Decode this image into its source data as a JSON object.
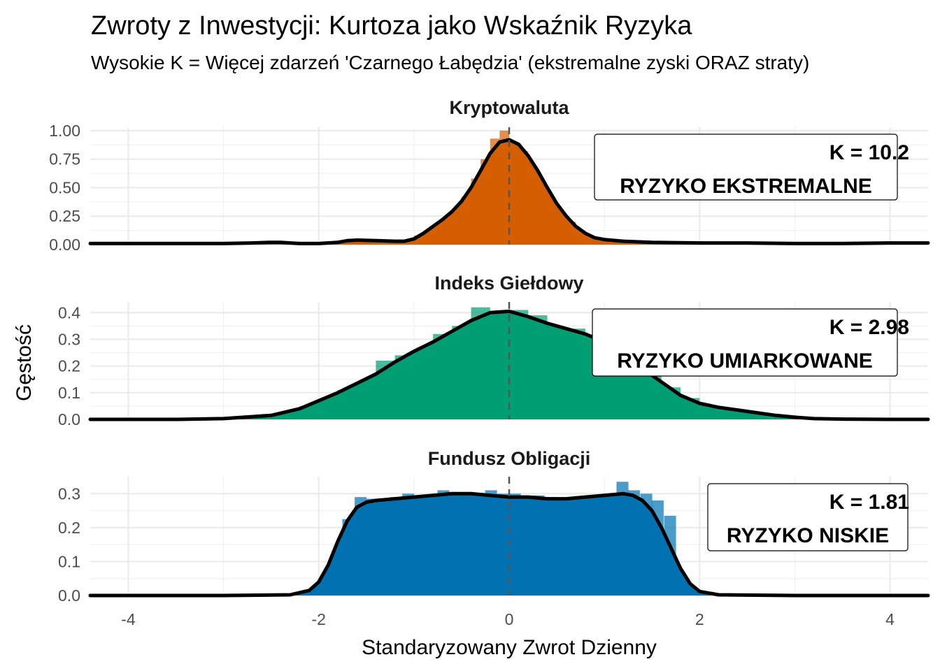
{
  "chart_data": {
    "type": "area",
    "title": "Zwroty z Inwestycji: Kurtoza jako Wskaźnik Ryzyka",
    "subtitle": "Wysokie K = Więcej zdarzeń 'Czarnego Łabędzia' (ekstremalne zyski ORAZ straty)",
    "xlabel": "Standaryzowany Zwrot Dzienny",
    "ylabel": "Gęstość",
    "xlim": [
      -4.4,
      4.4
    ],
    "x_ticks": [
      -4,
      -2,
      0,
      2,
      4
    ],
    "x_tick_labels": [
      "-4",
      "-2",
      "0",
      "2",
      "4"
    ],
    "reference_line_x": 0,
    "grid": true,
    "panels": [
      {
        "name": "Kryptowaluta",
        "color": "#D55E00",
        "ylim": [
          0,
          1.03
        ],
        "y_ticks": [
          0,
          0.25,
          0.5,
          0.75,
          1.0
        ],
        "y_tick_labels": [
          "0.00",
          "0.25",
          "0.50",
          "0.75",
          "1.00"
        ],
        "annotation_k": "K = 10.2",
        "annotation_risk": "RYZYKO EKSTREMALNE",
        "density": {
          "x": [
            -4.4,
            -3.5,
            -3.0,
            -2.7,
            -2.5,
            -2.4,
            -2.3,
            -2.2,
            -2.0,
            -1.8,
            -1.7,
            -1.6,
            -1.4,
            -1.2,
            -1.1,
            -1.0,
            -0.9,
            -0.8,
            -0.7,
            -0.6,
            -0.5,
            -0.4,
            -0.3,
            -0.2,
            -0.1,
            0.0,
            0.1,
            0.2,
            0.3,
            0.4,
            0.5,
            0.6,
            0.7,
            0.8,
            0.9,
            1.0,
            1.2,
            1.5,
            2.0,
            2.5,
            3.0,
            3.5,
            4.0,
            4.4
          ],
          "y": [
            0.01,
            0.01,
            0.01,
            0.015,
            0.02,
            0.02,
            0.015,
            0.01,
            0.01,
            0.02,
            0.035,
            0.04,
            0.035,
            0.03,
            0.03,
            0.05,
            0.1,
            0.16,
            0.22,
            0.29,
            0.38,
            0.5,
            0.65,
            0.8,
            0.9,
            0.92,
            0.88,
            0.78,
            0.65,
            0.5,
            0.36,
            0.25,
            0.16,
            0.1,
            0.06,
            0.045,
            0.03,
            0.02,
            0.015,
            0.015,
            0.01,
            0.01,
            0.015,
            0.015
          ]
        },
        "histogram": {
          "bin_width": 0.1,
          "centers": [
            -2.75,
            -1.85,
            -1.65,
            -1.15,
            -0.95,
            -0.75,
            -0.55,
            -0.45,
            -0.35,
            -0.25,
            -0.15,
            -0.05,
            0.05,
            0.15,
            0.25,
            0.35,
            0.45,
            0.55,
            0.65,
            0.75,
            0.85,
            0.95,
            1.25,
            2.55
          ],
          "heights": [
            0.02,
            0.02,
            0.03,
            0.04,
            0.08,
            0.15,
            0.28,
            0.42,
            0.58,
            0.75,
            0.93,
            1.0,
            0.9,
            0.82,
            0.65,
            0.5,
            0.38,
            0.28,
            0.2,
            0.12,
            0.08,
            0.05,
            0.03,
            0.02
          ]
        }
      },
      {
        "name": "Indeks Giełdowy",
        "color": "#009E73",
        "ylim": [
          0,
          0.44
        ],
        "y_ticks": [
          0,
          0.1,
          0.2,
          0.3,
          0.4
        ],
        "y_tick_labels": [
          "0.0",
          "0.1",
          "0.2",
          "0.3",
          "0.4"
        ],
        "annotation_k": "K = 2.98",
        "annotation_risk": "RYZYKO UMIARKOWANE",
        "density": {
          "x": [
            -4.4,
            -3.5,
            -3.0,
            -2.5,
            -2.2,
            -2.0,
            -1.8,
            -1.6,
            -1.4,
            -1.2,
            -1.0,
            -0.8,
            -0.6,
            -0.4,
            -0.2,
            0.0,
            0.2,
            0.4,
            0.6,
            0.8,
            1.0,
            1.2,
            1.4,
            1.6,
            1.8,
            2.0,
            2.2,
            2.4,
            2.6,
            2.8,
            3.0,
            3.2,
            3.5,
            4.0,
            4.4
          ],
          "y": [
            0.0,
            0.0,
            0.003,
            0.015,
            0.04,
            0.07,
            0.1,
            0.135,
            0.17,
            0.215,
            0.255,
            0.29,
            0.33,
            0.37,
            0.4,
            0.405,
            0.385,
            0.36,
            0.34,
            0.32,
            0.29,
            0.24,
            0.19,
            0.14,
            0.09,
            0.06,
            0.045,
            0.035,
            0.025,
            0.015,
            0.008,
            0.003,
            0.001,
            0.0,
            0.0
          ]
        },
        "histogram": {
          "bin_width": 0.2,
          "centers": [
            -2.5,
            -2.3,
            -2.1,
            -1.9,
            -1.7,
            -1.5,
            -1.3,
            -1.1,
            -0.9,
            -0.7,
            -0.5,
            -0.3,
            -0.1,
            0.1,
            0.3,
            0.5,
            0.7,
            0.9,
            1.1,
            1.3,
            1.5,
            1.7,
            1.9,
            2.1,
            2.3,
            2.5,
            2.7
          ],
          "heights": [
            0.02,
            0.03,
            0.05,
            0.07,
            0.11,
            0.14,
            0.22,
            0.24,
            0.26,
            0.32,
            0.35,
            0.42,
            0.4,
            0.41,
            0.39,
            0.3,
            0.34,
            0.3,
            0.27,
            0.24,
            0.18,
            0.12,
            0.08,
            0.05,
            0.04,
            0.03,
            0.02
          ]
        }
      },
      {
        "name": "Fundusz Obligacji",
        "color": "#0072B2",
        "ylim": [
          0,
          0.35
        ],
        "y_ticks": [
          0,
          0.1,
          0.2,
          0.3
        ],
        "y_tick_labels": [
          "0.0",
          "0.1",
          "0.2",
          "0.3"
        ],
        "annotation_k": "K = 1.81",
        "annotation_risk": "RYZYKO NISKIE",
        "density": {
          "x": [
            -4.4,
            -3.0,
            -2.3,
            -2.1,
            -2.0,
            -1.9,
            -1.8,
            -1.7,
            -1.6,
            -1.5,
            -1.4,
            -1.2,
            -1.0,
            -0.8,
            -0.6,
            -0.4,
            -0.2,
            0.0,
            0.2,
            0.4,
            0.6,
            0.8,
            1.0,
            1.2,
            1.3,
            1.4,
            1.5,
            1.6,
            1.7,
            1.8,
            1.9,
            2.0,
            2.2,
            3.0,
            4.4
          ],
          "y": [
            0.0,
            0.0,
            0.002,
            0.015,
            0.04,
            0.09,
            0.16,
            0.22,
            0.26,
            0.275,
            0.28,
            0.285,
            0.29,
            0.295,
            0.3,
            0.3,
            0.295,
            0.29,
            0.29,
            0.285,
            0.285,
            0.29,
            0.295,
            0.3,
            0.295,
            0.28,
            0.25,
            0.2,
            0.14,
            0.08,
            0.035,
            0.012,
            0.002,
            0.0,
            0.0
          ]
        },
        "histogram": {
          "bin_width": 0.125,
          "centers": [
            -1.69,
            -1.56,
            -1.44,
            -1.31,
            -1.19,
            -1.06,
            -0.94,
            -0.81,
            -0.69,
            -0.56,
            -0.44,
            -0.31,
            -0.19,
            -0.06,
            0.06,
            0.19,
            0.31,
            0.44,
            0.56,
            0.69,
            0.81,
            0.94,
            1.06,
            1.19,
            1.31,
            1.44,
            1.56,
            1.69
          ],
          "heights": [
            0.225,
            0.29,
            0.285,
            0.28,
            0.29,
            0.3,
            0.295,
            0.29,
            0.31,
            0.29,
            0.3,
            0.295,
            0.31,
            0.3,
            0.3,
            0.28,
            0.295,
            0.29,
            0.28,
            0.27,
            0.285,
            0.295,
            0.3,
            0.335,
            0.31,
            0.3,
            0.28,
            0.235
          ]
        }
      }
    ]
  }
}
